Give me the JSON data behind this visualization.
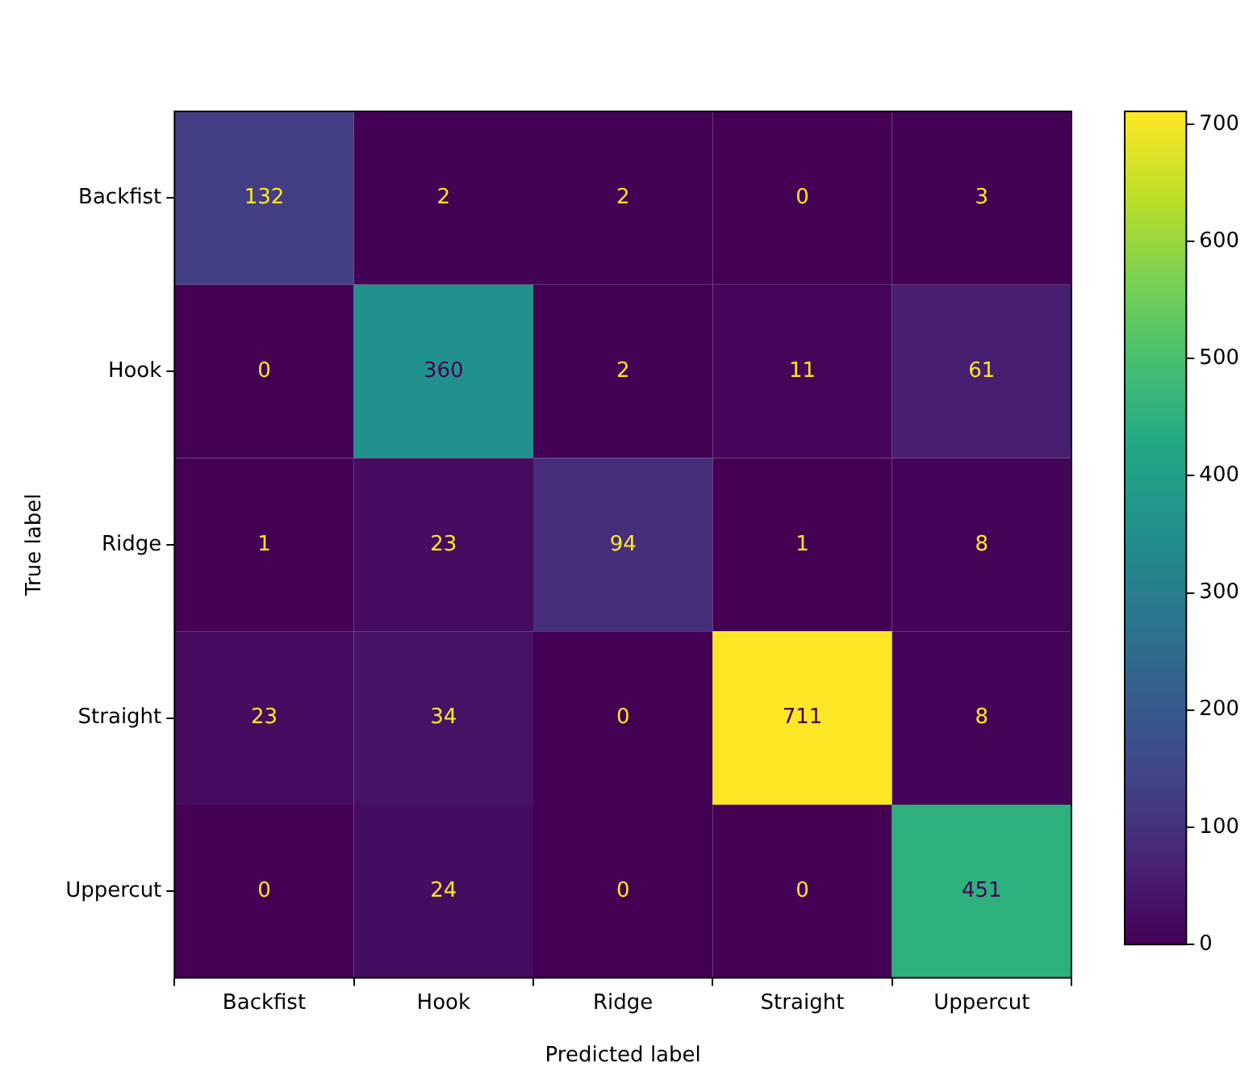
{
  "chart_data": {
    "type": "heatmap",
    "xlabel": "Predicted label",
    "ylabel": "True label",
    "categories": [
      "Backfist",
      "Hook",
      "Ridge",
      "Straight",
      "Uppercut"
    ],
    "y_categories": [
      "Backfist",
      "Hook",
      "Ridge",
      "Straight",
      "Uppercut"
    ],
    "cells": [
      [
        132,
        2,
        2,
        0,
        3
      ],
      [
        0,
        360,
        2,
        11,
        61
      ],
      [
        1,
        23,
        94,
        1,
        8
      ],
      [
        23,
        34,
        0,
        711,
        8
      ],
      [
        0,
        24,
        0,
        0,
        451
      ]
    ],
    "clim": [
      0,
      711
    ],
    "cticks": [
      0,
      100,
      200,
      300,
      400,
      500,
      600,
      700
    ],
    "data_labels": true
  }
}
